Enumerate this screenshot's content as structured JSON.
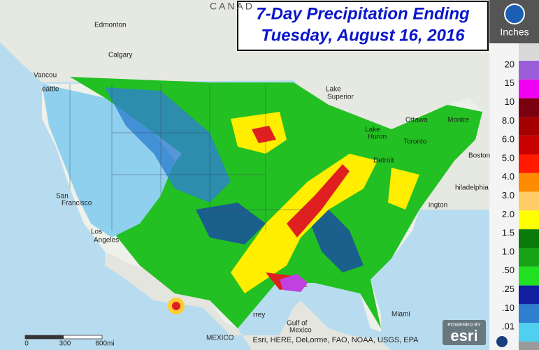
{
  "header": {
    "title_lines": [
      "7-Day Precipitation Ending",
      "Tuesday, August 16, 2016"
    ]
  },
  "legend": {
    "unit": "Inches",
    "items": [
      {
        "label": "20",
        "color": "#9a5fd8"
      },
      {
        "label": "15",
        "color": "#f000f0"
      },
      {
        "label": "10",
        "color": "#7a0010"
      },
      {
        "label": "8.0",
        "color": "#a50000"
      },
      {
        "label": "6.0",
        "color": "#c80000"
      },
      {
        "label": "5.0",
        "color": "#ff1a00"
      },
      {
        "label": "4.0",
        "color": "#ff8c00"
      },
      {
        "label": "3.0",
        "color": "#ffcc66"
      },
      {
        "label": "2.0",
        "color": "#ffff00"
      },
      {
        "label": "1.5",
        "color": "#0a7a0a"
      },
      {
        "label": "1.0",
        "color": "#16a416"
      },
      {
        "label": ".50",
        "color": "#22e022"
      },
      {
        "label": ".25",
        "color": "#1020a0"
      },
      {
        "label": ".10",
        "color": "#2f7fd0"
      },
      {
        "label": ".01",
        "color": "#4fd0f0"
      }
    ]
  },
  "map": {
    "labels": [
      "CANAD",
      "Edmonton",
      "Calgary",
      "Vancou",
      "eattle",
      "San",
      "Francisco",
      "Los",
      "Angeles",
      "Lake",
      "Superior",
      "Ottawa",
      "Montre",
      "Lake",
      "Huron",
      "Toronto",
      "Detroit",
      "Boston",
      "hiladelphia",
      "ington",
      "Miami",
      "Gulf of",
      "Mexico",
      "rrey",
      "MEXICO"
    ]
  },
  "scale_bar": {
    "labels": [
      "0",
      "300",
      "600mi"
    ]
  },
  "attribution": "Esri, HERE, DeLorme, FAO, NOAA, USGS, EPA",
  "esri": {
    "powered_by": "POWERED BY",
    "logo": "esri"
  }
}
